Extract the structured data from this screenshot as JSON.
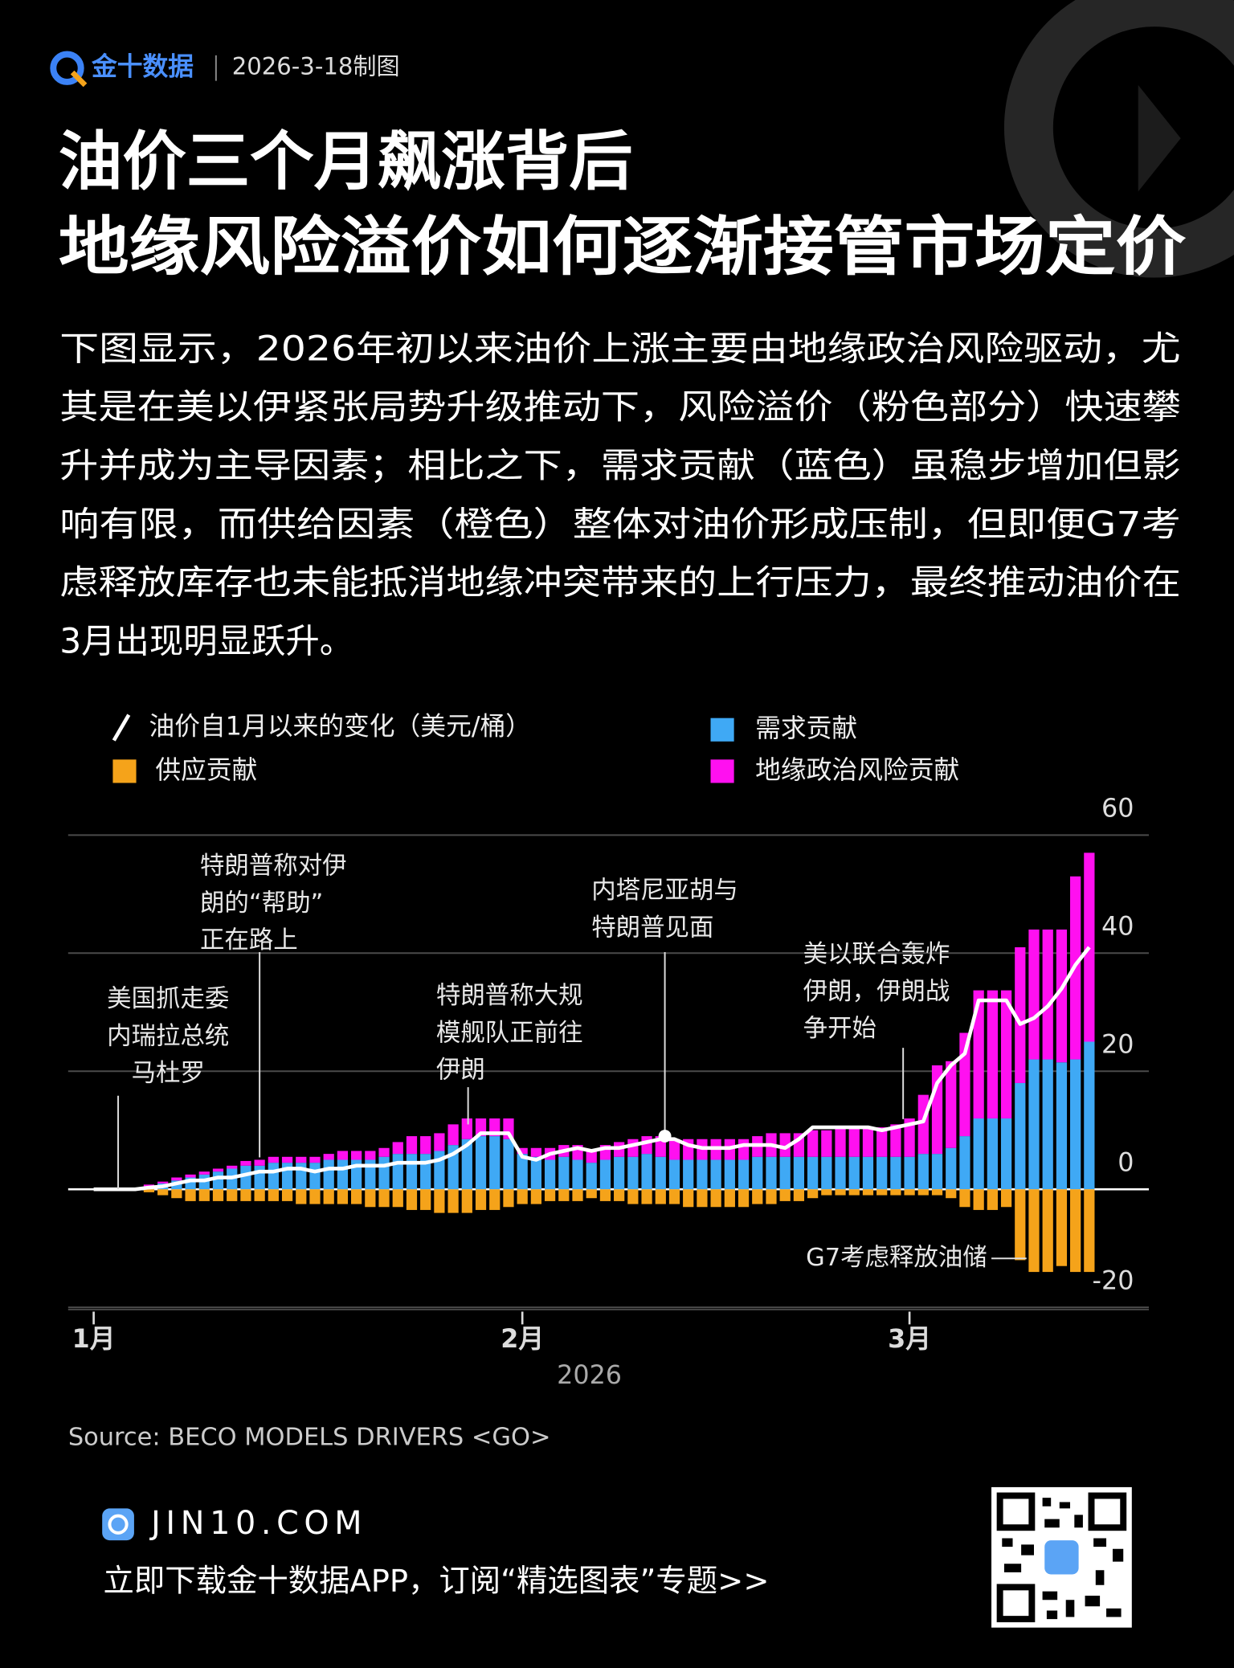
{
  "header": {
    "brand": "金十数据",
    "date": "2026-3-18制图",
    "title": [
      "油价三个月飙涨背后",
      "地缘风险溢价如何逐渐接管市场定价"
    ],
    "paragraph": [
      "下图显示，2026年初以来油价上涨主要由地缘政治风险驱动，尤",
      "其是在美以伊紧张局势升级推动下，风险溢价（粉色部分）快速攀",
      "升并成为主导因素；相比之下，需求贡献（蓝色）虽稳步增加但影",
      "响有限，而供给因素（橙色）整体对油价形成压制，但即便G7考",
      "虑释放库存也未能抵消地缘冲突带来的上行压力，最终推动油价在",
      "3月出现明显跃升。"
    ]
  },
  "chart_data": {
    "type": "stacked_bar_line",
    "xlabel": "2026",
    "source": "Source: BECO MODELS DRIVERS <GO>",
    "categories": [
      "1月",
      null,
      null,
      null,
      null,
      null,
      null,
      null,
      null,
      null,
      null,
      null,
      null,
      null,
      null,
      null,
      null,
      null,
      null,
      null,
      null,
      null,
      null,
      null,
      null,
      null,
      null,
      null,
      null,
      null,
      null,
      "2月",
      null,
      null,
      null,
      null,
      null,
      null,
      null,
      null,
      null,
      null,
      null,
      null,
      null,
      null,
      null,
      null,
      null,
      null,
      null,
      null,
      null,
      null,
      null,
      null,
      null,
      null,
      null,
      "3月",
      null,
      null,
      null,
      null,
      null,
      null,
      null,
      null,
      null,
      null,
      null,
      null,
      null
    ],
    "series": [
      {
        "name": "油价自1月以来的变化（美元/桶）",
        "type": "line",
        "color": "#ffffff",
        "values": [
          0,
          0,
          0,
          0,
          0.3,
          0.5,
          1,
          1.5,
          1.5,
          2,
          2,
          2.5,
          3,
          3,
          3.5,
          3.5,
          3,
          3.5,
          3.5,
          4,
          4,
          4,
          4.5,
          4.5,
          4.5,
          5,
          6,
          7.5,
          9.5,
          9.5,
          9.5,
          5.5,
          5,
          6,
          6.5,
          7,
          6.5,
          7,
          7,
          7.5,
          8,
          8.5,
          8.5,
          7.5,
          7,
          7,
          7,
          7.5,
          7.5,
          7.5,
          7,
          8.5,
          10.5,
          10.5,
          10.5,
          10.5,
          10.5,
          10,
          10.5,
          11,
          11.5,
          18,
          21,
          23,
          32,
          32,
          32,
          28,
          29,
          31,
          34,
          38,
          41
        ]
      },
      {
        "name": "需求贡献",
        "type": "bar",
        "color": "#3fa9f5",
        "values": [
          0,
          0,
          0,
          0,
          0.5,
          1,
          1.5,
          2,
          2.5,
          3,
          3.5,
          4,
          4,
          4.5,
          4.5,
          4.5,
          4.5,
          5,
          5,
          5,
          5,
          5.5,
          6,
          6,
          6,
          6.5,
          7.5,
          8.5,
          9,
          9,
          8.5,
          6,
          5.5,
          5,
          5.5,
          5,
          4.5,
          5,
          5.5,
          5.5,
          6,
          5.5,
          5,
          5,
          5,
          5,
          5,
          5,
          5.5,
          5.5,
          5.5,
          5.5,
          5.5,
          5.5,
          5.5,
          5.5,
          5.5,
          5.5,
          5.5,
          5.5,
          6,
          6,
          7,
          9,
          12,
          12,
          12,
          18,
          22,
          22,
          21.5,
          22,
          25
        ]
      },
      {
        "name": "供应贡献",
        "type": "bar",
        "color": "#f5a31a",
        "values": [
          0,
          0,
          0,
          0,
          -0.5,
          -1,
          -1.5,
          -2,
          -2,
          -2,
          -2,
          -2,
          -2,
          -2,
          -2,
          -2.5,
          -2.5,
          -2.5,
          -2.5,
          -2.5,
          -3,
          -3,
          -3,
          -3.5,
          -3.5,
          -4,
          -4,
          -4,
          -3.5,
          -3.5,
          -3,
          -2.5,
          -2.5,
          -2,
          -2,
          -2,
          -1.5,
          -2,
          -2,
          -2.5,
          -2.5,
          -2.5,
          -2.5,
          -3,
          -3,
          -3,
          -3,
          -3,
          -2.5,
          -2.5,
          -2,
          -2,
          -1.5,
          -1,
          -1,
          -1,
          -1,
          -1,
          -1,
          -1,
          -1,
          -1,
          -1.5,
          -3,
          -3.5,
          -3.5,
          -3,
          -12,
          -14,
          -14,
          -13,
          -14,
          -14
        ]
      },
      {
        "name": "地缘政治风险贡献",
        "type": "bar",
        "color": "#ff10f0",
        "values": [
          0,
          0,
          0,
          0,
          0.3,
          0.3,
          0.5,
          0.5,
          0.5,
          0.5,
          0.5,
          0.8,
          1,
          1,
          1,
          1,
          1,
          1,
          1.5,
          1.5,
          1.5,
          1.5,
          2,
          3,
          3,
          3,
          3.5,
          3.5,
          3,
          3,
          3.5,
          1,
          1.5,
          2,
          2,
          2.5,
          2,
          2.5,
          2.5,
          3,
          3,
          3.5,
          3.5,
          3.5,
          3.5,
          3.5,
          3.5,
          3.5,
          3.5,
          4,
          4,
          4,
          4.5,
          4.5,
          5,
          5,
          5,
          5,
          5.5,
          6.5,
          10,
          15,
          14.7,
          17.5,
          21.7,
          21.7,
          21.7,
          23,
          22,
          22,
          22.5,
          31,
          32
        ]
      }
    ],
    "ylim": [
      -20,
      60
    ],
    "yticks": [
      -20,
      0,
      20,
      40,
      60
    ],
    "grid": true,
    "annotations": [
      {
        "lines": [
          "美国抓走委",
          "内瑞拉总统",
          "马杜罗"
        ]
      },
      {
        "lines": [
          "特朗普称对伊",
          "朗的“帮助”",
          "正在路上"
        ]
      },
      {
        "lines": [
          "特朗普称大规",
          "模舰队正前往",
          "伊朗"
        ]
      },
      {
        "lines": [
          "内塔尼亚胡与",
          "特朗普见面"
        ]
      },
      {
        "lines": [
          "美以联合轰炸",
          "伊朗，伊朗战",
          "争开始"
        ]
      },
      {
        "lines": [
          "G7考虑释放油储"
        ]
      }
    ]
  },
  "footer": {
    "site": "JIN10.COM",
    "cta": "立即下载金十数据APP，订阅“精选图表”专题>>"
  }
}
